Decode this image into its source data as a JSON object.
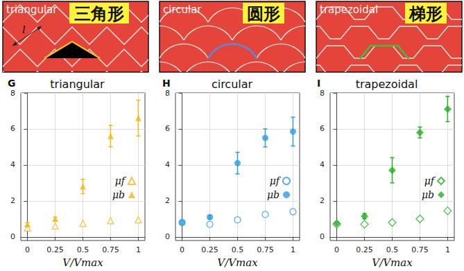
{
  "top_panels": [
    {
      "label": "triangular",
      "label_zh": "三角形",
      "annotation": "l"
    },
    {
      "label": "circular",
      "label_zh": "圆形"
    },
    {
      "label": "trapezoidal",
      "label_zh": "梯形"
    }
  ],
  "chart_data": [
    {
      "type": "scatter",
      "panel": "G",
      "title": "triangular",
      "xlabel": "V/Vmax",
      "x": [
        0,
        0.25,
        0.5,
        0.75,
        1
      ],
      "xlim": [
        -0.06,
        1.06
      ],
      "xticks": [
        0,
        0.25,
        0.5,
        0.75,
        1
      ],
      "ylim": [
        -0.2,
        8
      ],
      "yticks": [
        0,
        2,
        4,
        6,
        8
      ],
      "grid": true,
      "legend": "lower right",
      "series": [
        {
          "name": "μf",
          "color": "#f0b81c",
          "marker": "triangle-open",
          "values": [
            0.5,
            0.6,
            0.75,
            0.9,
            0.95
          ]
        },
        {
          "name": "μb",
          "color": "#f0b81c",
          "marker": "triangle",
          "values": [
            0.7,
            1.0,
            2.8,
            5.6,
            6.6
          ],
          "errors": [
            0.1,
            0.1,
            0.4,
            0.6,
            1.0
          ]
        }
      ]
    },
    {
      "type": "scatter",
      "panel": "H",
      "title": "circular",
      "xlabel": "V/Vmax",
      "x": [
        0,
        0.25,
        0.5,
        0.75,
        1
      ],
      "xlim": [
        -0.06,
        1.06
      ],
      "xticks": [
        0,
        0.25,
        0.5,
        0.75,
        1
      ],
      "ylim": [
        -0.2,
        8
      ],
      "yticks": [
        0,
        2,
        4,
        6,
        8
      ],
      "grid": true,
      "legend": "lower right",
      "series": [
        {
          "name": "μf",
          "color": "#2f9be0",
          "marker": "circle-open",
          "values": [
            0.8,
            0.7,
            0.95,
            1.25,
            1.4
          ]
        },
        {
          "name": "μb",
          "color": "#2f9be0",
          "marker": "circle",
          "values": [
            0.8,
            1.1,
            4.1,
            5.5,
            5.85
          ],
          "errors": [
            0.1,
            0.1,
            0.6,
            0.5,
            0.8
          ]
        }
      ]
    },
    {
      "type": "scatter",
      "panel": "I",
      "title": "trapezoidal",
      "xlabel": "V/Vmax",
      "x": [
        0,
        0.25,
        0.5,
        0.75,
        1
      ],
      "xlim": [
        -0.06,
        1.06
      ],
      "xticks": [
        0,
        0.25,
        0.5,
        0.75,
        1
      ],
      "ylim": [
        -0.2,
        8
      ],
      "yticks": [
        0,
        2,
        4,
        6,
        8
      ],
      "grid": true,
      "legend": "lower right",
      "series": [
        {
          "name": "μf",
          "color": "#22b022",
          "marker": "diamond-open",
          "values": [
            0.7,
            0.7,
            0.8,
            1.0,
            1.45
          ]
        },
        {
          "name": "μb",
          "color": "#22b022",
          "marker": "diamond",
          "values": [
            0.75,
            1.15,
            3.7,
            5.8,
            7.1
          ],
          "errors": [
            0.1,
            0.15,
            0.7,
            0.3,
            0.7
          ]
        }
      ]
    }
  ]
}
